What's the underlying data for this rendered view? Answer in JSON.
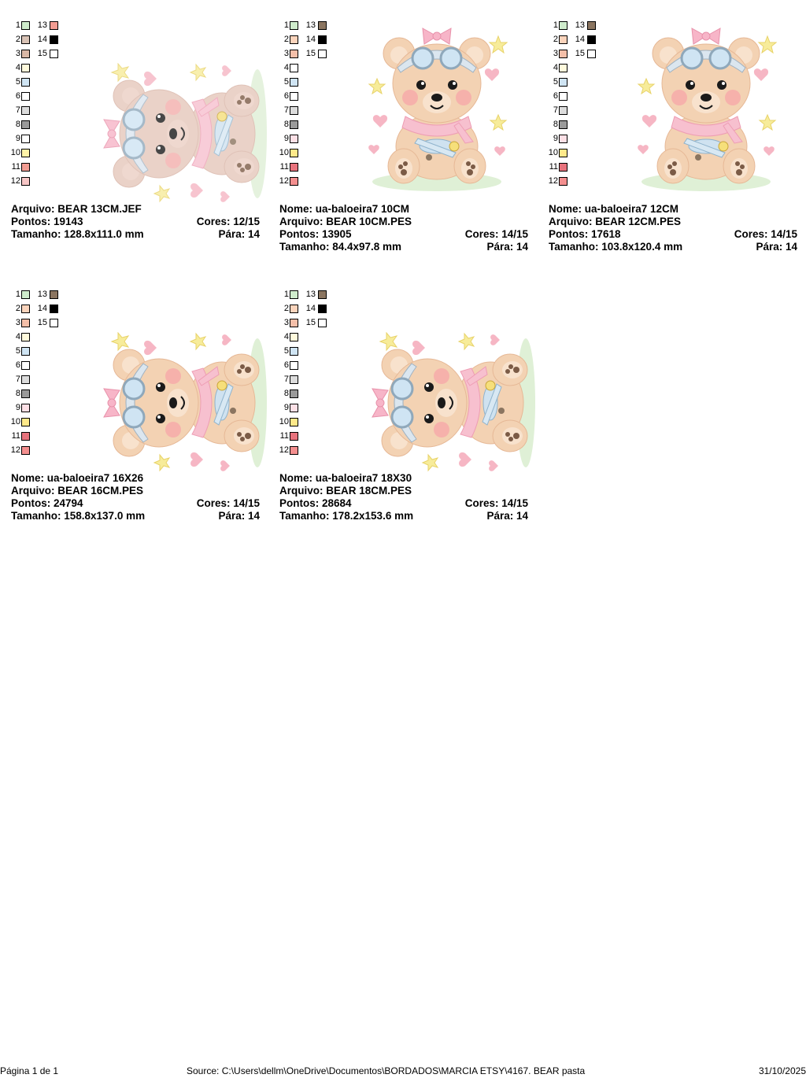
{
  "designs": [
    {
      "id": "bear-13cm",
      "palette": [
        {
          "num": "1",
          "color": "#cfeccc"
        },
        {
          "num": "2",
          "color": "#d9c3b6"
        },
        {
          "num": "3",
          "color": "#d9b8a6"
        },
        {
          "num": "4",
          "color": "#fffadc"
        },
        {
          "num": "5",
          "color": "#cfe4f3"
        },
        {
          "num": "6",
          "color": "#ffffff"
        },
        {
          "num": "7",
          "color": "#dcdcdc"
        },
        {
          "num": "8",
          "color": "#9a9a9a"
        },
        {
          "num": "9",
          "color": "#ffffff"
        },
        {
          "num": "10",
          "color": "#fff3a8"
        },
        {
          "num": "11",
          "color": "#f29c92"
        },
        {
          "num": "12",
          "color": "#f7c6c6"
        },
        {
          "num": "13",
          "color": "#f29c92"
        },
        {
          "num": "14",
          "color": "#000000"
        },
        {
          "num": "15",
          "color": "#ffffff"
        }
      ],
      "lines": [
        {
          "left": "Arquivo: BEAR 13CM.JEF",
          "right": ""
        },
        {
          "left": "Pontos: 19143",
          "right": "Cores: 12/15"
        },
        {
          "left": "Tamanho: 128.8x111.0 mm",
          "right": "Pára: 14"
        }
      ],
      "art": {
        "rotated": true,
        "faded": true
      }
    },
    {
      "id": "bear-10cm",
      "palette": [
        {
          "num": "1",
          "color": "#cfeccc"
        },
        {
          "num": "2",
          "color": "#fbd4bc"
        },
        {
          "num": "3",
          "color": "#f4bfa9"
        },
        {
          "num": "4",
          "color": "#ffffff"
        },
        {
          "num": "5",
          "color": "#cfe4f3"
        },
        {
          "num": "6",
          "color": "#ffffff"
        },
        {
          "num": "7",
          "color": "#dcdcdc"
        },
        {
          "num": "8",
          "color": "#9a9a9a"
        },
        {
          "num": "9",
          "color": "#fde0e6"
        },
        {
          "num": "10",
          "color": "#ffe98a"
        },
        {
          "num": "11",
          "color": "#e8737d"
        },
        {
          "num": "12",
          "color": "#f48f8f"
        },
        {
          "num": "13",
          "color": "#8b7560"
        },
        {
          "num": "14",
          "color": "#000000"
        },
        {
          "num": "15",
          "color": "#ffffff"
        }
      ],
      "lines": [
        {
          "left": "Nome: ua-baloeira7 10CM",
          "right": ""
        },
        {
          "left": "Arquivo: BEAR 10CM.PES",
          "right": ""
        },
        {
          "left": "Pontos: 13905",
          "right": "Cores: 14/15"
        },
        {
          "left": "Tamanho: 84.4x97.8 mm",
          "right": "Pára: 14"
        }
      ],
      "art": {
        "rotated": false,
        "faded": false
      }
    },
    {
      "id": "bear-12cm",
      "palette": [
        {
          "num": "1",
          "color": "#cfeccc"
        },
        {
          "num": "2",
          "color": "#fbd4bc"
        },
        {
          "num": "3",
          "color": "#f4bfa9"
        },
        {
          "num": "4",
          "color": "#fffadc"
        },
        {
          "num": "5",
          "color": "#cfe4f3"
        },
        {
          "num": "6",
          "color": "#ffffff"
        },
        {
          "num": "7",
          "color": "#dcdcdc"
        },
        {
          "num": "8",
          "color": "#9a9a9a"
        },
        {
          "num": "9",
          "color": "#fde0e6"
        },
        {
          "num": "10",
          "color": "#ffe98a"
        },
        {
          "num": "11",
          "color": "#e8737d"
        },
        {
          "num": "12",
          "color": "#f48f8f"
        },
        {
          "num": "13",
          "color": "#8b7560"
        },
        {
          "num": "14",
          "color": "#000000"
        },
        {
          "num": "15",
          "color": "#ffffff"
        }
      ],
      "lines": [
        {
          "left": "Nome: ua-baloeira7 12CM",
          "right": ""
        },
        {
          "left": "Arquivo: BEAR 12CM.PES",
          "right": ""
        },
        {
          "left": "Pontos: 17618",
          "right": "Cores: 14/15"
        },
        {
          "left": "Tamanho: 103.8x120.4 mm",
          "right": "Pára: 14"
        }
      ],
      "art": {
        "rotated": false,
        "faded": false
      }
    },
    {
      "id": "bear-16cm",
      "palette": [
        {
          "num": "1",
          "color": "#cfeccc"
        },
        {
          "num": "2",
          "color": "#fbd4bc"
        },
        {
          "num": "3",
          "color": "#f4bfa9"
        },
        {
          "num": "4",
          "color": "#fffadc"
        },
        {
          "num": "5",
          "color": "#cfe4f3"
        },
        {
          "num": "6",
          "color": "#ffffff"
        },
        {
          "num": "7",
          "color": "#dcdcdc"
        },
        {
          "num": "8",
          "color": "#9a9a9a"
        },
        {
          "num": "9",
          "color": "#fde0e6"
        },
        {
          "num": "10",
          "color": "#ffe98a"
        },
        {
          "num": "11",
          "color": "#e8737d"
        },
        {
          "num": "12",
          "color": "#f48f8f"
        },
        {
          "num": "13",
          "color": "#8b7560"
        },
        {
          "num": "14",
          "color": "#000000"
        },
        {
          "num": "15",
          "color": "#ffffff"
        }
      ],
      "lines": [
        {
          "left": "Nome: ua-baloeira7 16X26",
          "right": ""
        },
        {
          "left": "Arquivo: BEAR 16CM.PES",
          "right": ""
        },
        {
          "left": "Pontos: 24794",
          "right": "Cores: 14/15"
        },
        {
          "left": "Tamanho: 158.8x137.0 mm",
          "right": "Pára: 14"
        }
      ],
      "art": {
        "rotated": true,
        "faded": false
      }
    },
    {
      "id": "bear-18cm",
      "palette": [
        {
          "num": "1",
          "color": "#cfeccc"
        },
        {
          "num": "2",
          "color": "#fbd4bc"
        },
        {
          "num": "3",
          "color": "#f4bfa9"
        },
        {
          "num": "4",
          "color": "#fffadc"
        },
        {
          "num": "5",
          "color": "#cfe4f3"
        },
        {
          "num": "6",
          "color": "#ffffff"
        },
        {
          "num": "7",
          "color": "#dcdcdc"
        },
        {
          "num": "8",
          "color": "#9a9a9a"
        },
        {
          "num": "9",
          "color": "#fde0e6"
        },
        {
          "num": "10",
          "color": "#ffe98a"
        },
        {
          "num": "11",
          "color": "#e8737d"
        },
        {
          "num": "12",
          "color": "#f48f8f"
        },
        {
          "num": "13",
          "color": "#8b7560"
        },
        {
          "num": "14",
          "color": "#000000"
        },
        {
          "num": "15",
          "color": "#ffffff"
        }
      ],
      "lines": [
        {
          "left": "Nome: ua-baloeira7 18X30",
          "right": ""
        },
        {
          "left": "Arquivo: BEAR 18CM.PES",
          "right": ""
        },
        {
          "left": "Pontos: 28684",
          "right": "Cores: 14/15"
        },
        {
          "left": "Tamanho: 178.2x153.6 mm",
          "right": "Pára: 14"
        }
      ],
      "art": {
        "rotated": true,
        "faded": false
      }
    }
  ],
  "footer": {
    "page": "Página 1 de 1",
    "source": "Source: C:\\Users\\dellm\\OneDrive\\Documentos\\BORDADOS\\MARCIA ETSY\\4167. BEAR pasta",
    "date": "31/10/2025"
  }
}
